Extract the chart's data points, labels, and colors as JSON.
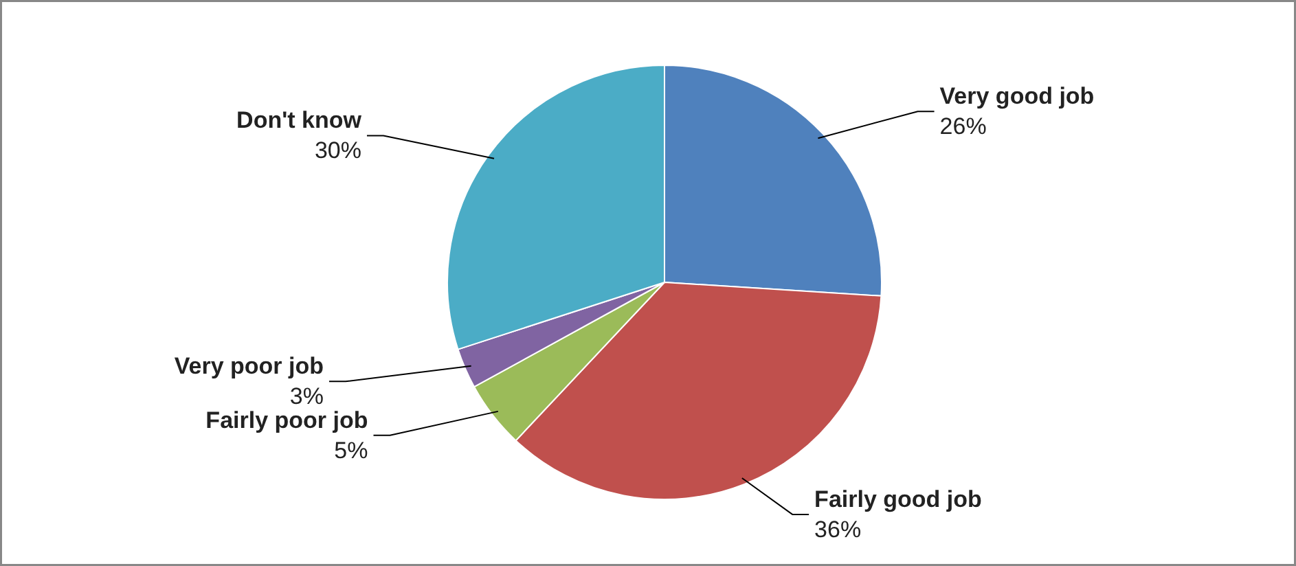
{
  "chart_data": {
    "type": "pie",
    "categories": [
      "Very good job",
      "Fairly good job",
      "Fairly poor job",
      "Very poor job",
      "Don't know"
    ],
    "values": [
      26,
      36,
      5,
      3,
      30
    ],
    "colors": [
      "#4f81bd",
      "#c0504d",
      "#9bbb59",
      "#8064a2",
      "#4bacc6"
    ],
    "value_labels": [
      "26%",
      "36%",
      "5%",
      "3%",
      "30%"
    ],
    "data_labels": true
  }
}
